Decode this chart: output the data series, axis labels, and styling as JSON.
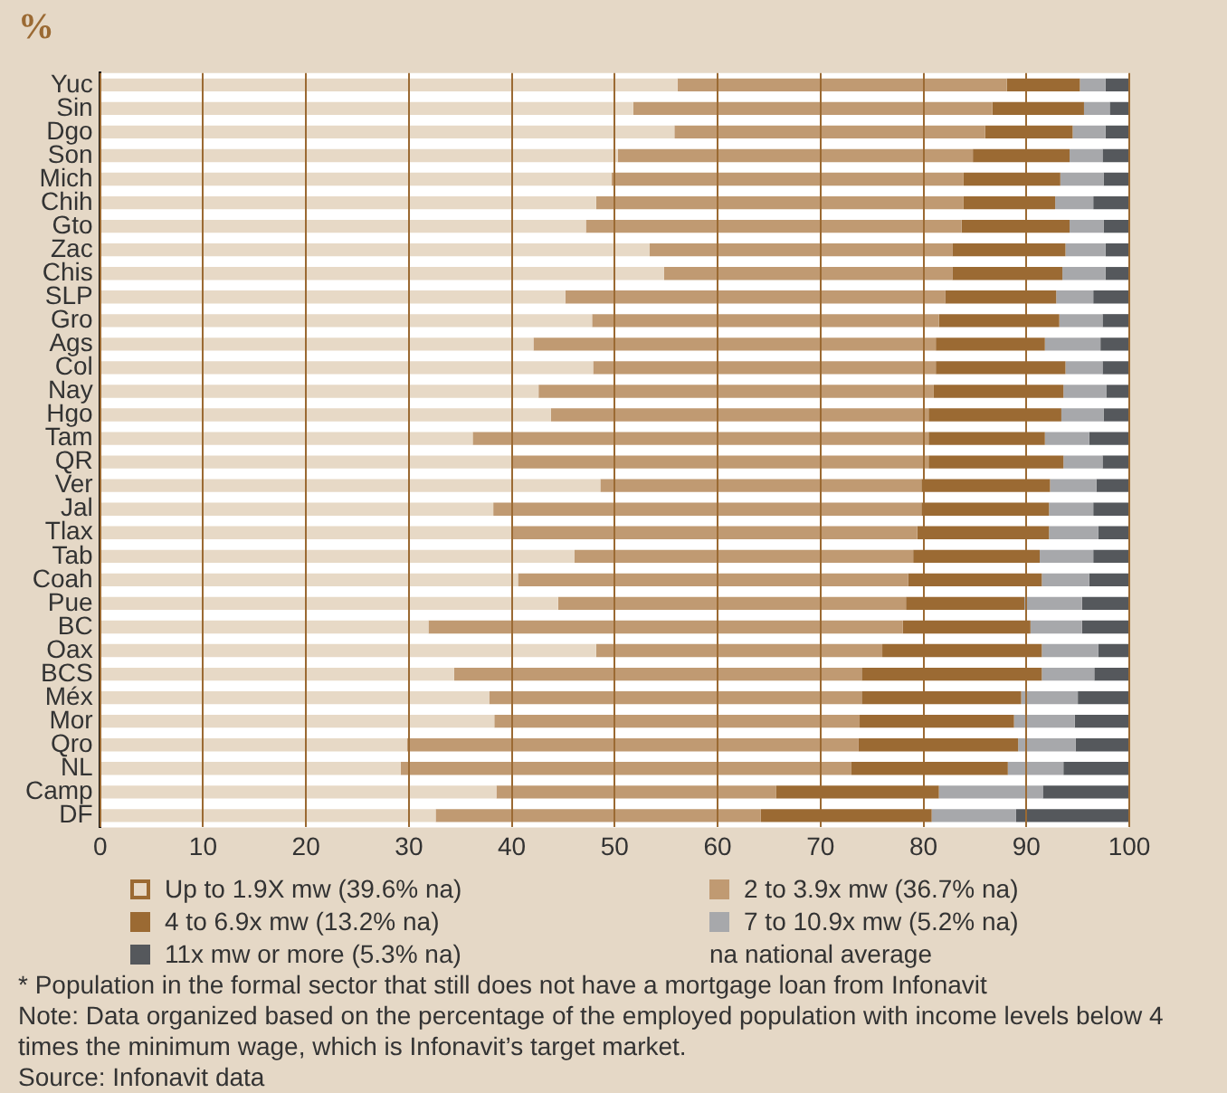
{
  "chart_data": {
    "type": "bar",
    "orientation": "horizontal",
    "stacked": true,
    "xlabel": "%",
    "categories": [
      "Yuc",
      "Sin",
      "Dgo",
      "Son",
      "Mich",
      "Chih",
      "Gto",
      "Zac",
      "Chis",
      "SLP",
      "Gro",
      "Ags",
      "Col",
      "Nay",
      "Hgo",
      "Tam",
      "QR",
      "Ver",
      "Jal",
      "Tlax",
      "Tab",
      "Coah",
      "Pue",
      "BC",
      "Oax",
      "BCS",
      "Méx",
      "Mor",
      "Qro",
      "NL",
      "Camp",
      "DF"
    ],
    "series": [
      {
        "name": "Up to 1.9X mw (39.6% na)",
        "color": "#e7d9c6",
        "values": [
          56.1,
          51.8,
          55.8,
          50.3,
          49.7,
          48.2,
          47.2,
          53.4,
          54.8,
          45.2,
          47.8,
          42.1,
          47.9,
          42.6,
          43.8,
          36.2,
          40.1,
          48.6,
          38.2,
          40.1,
          46.1,
          40.6,
          44.5,
          31.9,
          48.2,
          34.4,
          37.8,
          38.3,
          29.8,
          29.2,
          38.5,
          32.6
        ]
      },
      {
        "name": "2 to 3.9x mw (36.7% na)",
        "color": "#c09a72",
        "values": [
          32.0,
          34.9,
          30.2,
          34.5,
          34.2,
          35.7,
          36.5,
          29.4,
          28.0,
          36.9,
          33.7,
          39.1,
          33.3,
          38.4,
          36.7,
          44.3,
          40.4,
          31.2,
          41.6,
          39.3,
          32.9,
          37.9,
          33.8,
          46.1,
          27.8,
          39.6,
          36.2,
          35.5,
          43.9,
          43.8,
          27.2,
          31.6
        ]
      },
      {
        "name": "4 to 6.9x mw (13.2% na)",
        "color": "#9b6a33",
        "values": [
          7.1,
          8.9,
          8.5,
          9.4,
          9.4,
          8.9,
          10.5,
          11.0,
          10.7,
          10.8,
          11.7,
          10.6,
          12.6,
          12.6,
          12.9,
          11.3,
          13.1,
          12.5,
          12.4,
          12.8,
          12.3,
          13.0,
          11.5,
          12.4,
          15.5,
          17.5,
          15.5,
          15.0,
          15.5,
          15.2,
          15.8,
          16.6
        ]
      },
      {
        "name": "7 to 10.9x mw (5.2% na)",
        "color": "#a7a8ab",
        "values": [
          2.5,
          2.5,
          3.2,
          3.2,
          4.2,
          3.7,
          3.3,
          3.9,
          4.2,
          3.6,
          4.2,
          5.4,
          3.6,
          4.2,
          4.1,
          4.3,
          3.8,
          4.5,
          4.3,
          4.8,
          5.2,
          4.6,
          5.6,
          5.0,
          5.5,
          5.1,
          5.5,
          5.9,
          5.6,
          5.4,
          10.1,
          8.2
        ]
      },
      {
        "name": "11x mw or more (5.3% na)",
        "color": "#55585c",
        "values": [
          2.3,
          1.9,
          2.3,
          2.6,
          2.5,
          3.5,
          2.5,
          2.3,
          2.3,
          3.5,
          2.6,
          2.8,
          2.6,
          2.2,
          2.5,
          3.9,
          2.6,
          3.2,
          3.5,
          3.0,
          3.5,
          3.9,
          4.6,
          4.6,
          3.0,
          3.4,
          5.0,
          5.3,
          5.2,
          6.4,
          8.4,
          11.0
        ]
      }
    ],
    "xlim": [
      0,
      100
    ],
    "xticks": [
      0,
      10,
      20,
      30,
      40,
      50,
      60,
      70,
      80,
      90,
      100
    ],
    "grid": "x",
    "legend": "bottom",
    "annotations": [
      "na national average",
      "* Population in the formal sector that still does not have a mortgage loan from Infonavit",
      "Note: Data organized based on the percentage of the employed population with income levels below 4 times the minimum wage, which is Infonavit’s target market.",
      "Source: Infonavit data"
    ]
  }
}
